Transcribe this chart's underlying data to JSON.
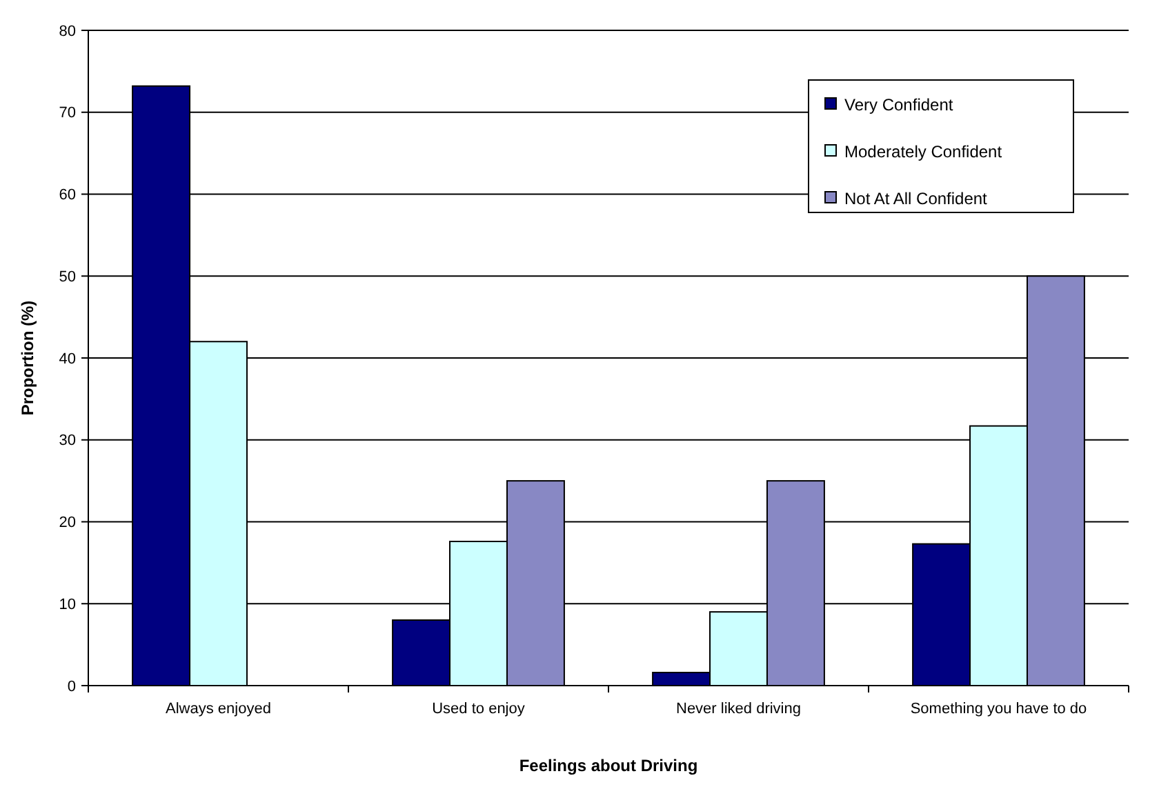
{
  "chart_data": {
    "type": "bar",
    "xlabel": "Feelings about Driving",
    "ylabel": "Proportion (%)",
    "categories": [
      "Always enjoyed",
      "Used to enjoy",
      "Never liked driving",
      "Something you have to do"
    ],
    "series": [
      {
        "name": "Very Confident",
        "color": "#000080",
        "values": [
          73.2,
          8,
          1.6,
          17.3
        ]
      },
      {
        "name": "Moderately Confident",
        "color": "#ccffff",
        "values": [
          42,
          17.6,
          9,
          31.7
        ]
      },
      {
        "name": "Not At All Confident",
        "color": "#8888c4",
        "values": [
          0,
          25,
          25,
          50
        ]
      }
    ],
    "ylim": [
      0,
      80
    ],
    "yticks": [
      0,
      10,
      20,
      30,
      40,
      50,
      60,
      70,
      80
    ],
    "grid": "y",
    "legend": "top right"
  }
}
